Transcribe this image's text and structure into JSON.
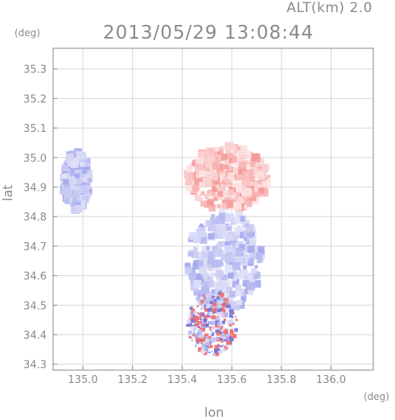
{
  "header": {
    "alt_label": "ALT(km) 2.0",
    "timestamp": "2013/05/29 13:08:44"
  },
  "chart_data": {
    "type": "heatmap",
    "title": "2013/05/29 13:08:44",
    "subtitle": "ALT(km) 2.0",
    "xlabel": "lon",
    "ylabel": "lat",
    "x_unit": "(deg)",
    "y_unit": "(deg)",
    "xlim": [
      134.88,
      136.17
    ],
    "ylim": [
      34.28,
      35.37
    ],
    "xticks": [
      "135.0",
      "135.2",
      "135.4",
      "135.6",
      "135.8",
      "136.0"
    ],
    "xtick_values": [
      135.0,
      135.2,
      135.4,
      135.6,
      135.8,
      136.0
    ],
    "yticks": [
      "35.3",
      "35.2",
      "35.1",
      "35.0",
      "34.9",
      "34.8",
      "34.7",
      "34.6",
      "34.5",
      "34.4",
      "34.3"
    ],
    "ytick_values": [
      35.3,
      35.2,
      35.1,
      35.0,
      34.9,
      34.8,
      34.7,
      34.6,
      34.5,
      34.4,
      34.3
    ],
    "grid": true,
    "colors": {
      "positive": "#f59a9a",
      "positive_light": "#fbd6d6",
      "negative": "#8f95e8",
      "negative_light": "#d6d8f6",
      "axis": "#8a8a8a",
      "grid": "#d8d8d8"
    },
    "regions": [
      {
        "name": "west-cluster",
        "sign": -1,
        "intensity": 0.3,
        "lon_range": [
          134.92,
          135.03
        ],
        "lat_range": [
          34.82,
          35.02
        ]
      },
      {
        "name": "north-positive-lobe",
        "sign": 1,
        "intensity": 0.5,
        "lon_range": [
          135.42,
          135.75
        ],
        "lat_range": [
          34.82,
          35.04
        ]
      },
      {
        "name": "central-negative-body",
        "sign": -1,
        "intensity": 0.45,
        "lon_range": [
          135.42,
          135.72
        ],
        "lat_range": [
          34.48,
          34.82
        ]
      },
      {
        "name": "south-mixed-tail",
        "sign": 0,
        "intensity": 0.6,
        "lon_range": [
          135.42,
          135.62
        ],
        "lat_range": [
          34.33,
          34.55
        ]
      }
    ]
  }
}
